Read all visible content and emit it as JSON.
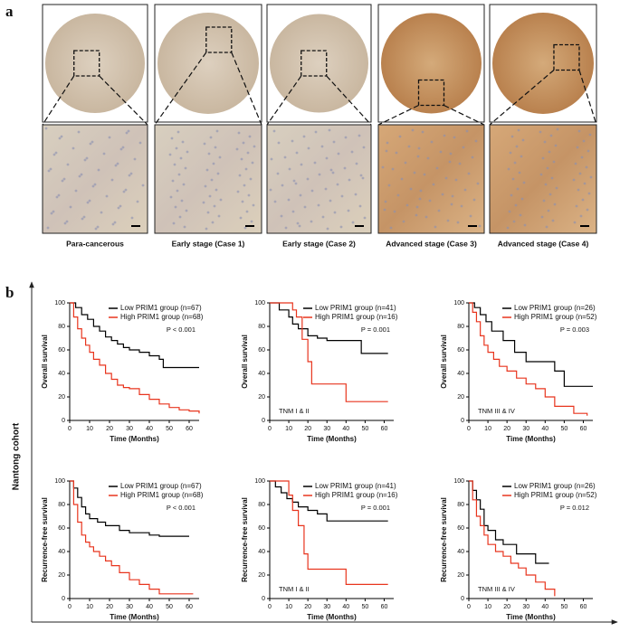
{
  "panel_a": {
    "label": "a",
    "captions": [
      "Para-cancerous",
      "Early stage (Case 1)",
      "Early stage (Case 2)",
      "Advanced stage (Case 3)",
      "Advanced stage (Case 4)"
    ]
  },
  "panel_b": {
    "label": "b",
    "cohort": "Nantong cohort"
  },
  "chart_data": [
    {
      "type": "line",
      "step": true,
      "ylabel": "Overall survival",
      "xlabel": "Time (Months)",
      "annotation": "P < 0.001",
      "legend": "upper right",
      "xlim": [
        0,
        65
      ],
      "ylim": [
        0,
        100
      ],
      "xticks": [
        0,
        10,
        20,
        30,
        40,
        50,
        60
      ],
      "yticks": [
        0,
        20,
        40,
        60,
        80,
        100
      ],
      "series": [
        {
          "name": "Low PRIM1 group (n=67)",
          "color": "#000000",
          "x": [
            0,
            3,
            6,
            9,
            12,
            15,
            18,
            21,
            24,
            27,
            30,
            35,
            40,
            45,
            47,
            65
          ],
          "values": [
            100,
            96,
            90,
            86,
            80,
            76,
            71,
            68,
            65,
            62,
            60,
            58,
            55,
            52,
            45,
            45
          ]
        },
        {
          "name": "High PRIM1 group (n=68)",
          "color": "#e8351e",
          "x": [
            0,
            2,
            4,
            6,
            8,
            10,
            12,
            15,
            18,
            21,
            24,
            27,
            30,
            35,
            40,
            45,
            50,
            55,
            60,
            65
          ],
          "values": [
            100,
            88,
            78,
            70,
            64,
            58,
            52,
            47,
            40,
            35,
            30,
            28,
            27,
            22,
            18,
            14,
            11,
            9,
            8,
            6
          ]
        }
      ]
    },
    {
      "type": "line",
      "step": true,
      "ylabel": "Overall survival",
      "xlabel": "Time (Months)",
      "annotation": "P = 0.001",
      "subgroup": "TNM I & II",
      "legend": "upper right",
      "xlim": [
        0,
        65
      ],
      "ylim": [
        0,
        100
      ],
      "xticks": [
        0,
        10,
        20,
        30,
        40,
        50,
        60
      ],
      "yticks": [
        0,
        20,
        40,
        60,
        80,
        100
      ],
      "series": [
        {
          "name": "Low PRIM1 group (n=41)",
          "color": "#000000",
          "x": [
            0,
            5,
            10,
            12,
            15,
            20,
            25,
            30,
            48,
            62
          ],
          "values": [
            100,
            94,
            88,
            82,
            78,
            72,
            70,
            68,
            57,
            57
          ]
        },
        {
          "name": "High PRIM1 group (n=16)",
          "color": "#e8351e",
          "x": [
            0,
            12,
            14,
            17,
            20,
            22,
            40,
            62
          ],
          "values": [
            100,
            94,
            88,
            69,
            50,
            31,
            16,
            16
          ]
        }
      ]
    },
    {
      "type": "line",
      "step": true,
      "ylabel": "Overall survival",
      "xlabel": "Time (Months)",
      "annotation": "P = 0.003",
      "subgroup": "TNM III & IV",
      "legend": "upper right",
      "xlim": [
        0,
        65
      ],
      "ylim": [
        0,
        100
      ],
      "xticks": [
        0,
        10,
        20,
        30,
        40,
        50,
        60
      ],
      "yticks": [
        0,
        20,
        40,
        60,
        80,
        100
      ],
      "series": [
        {
          "name": "Low PRIM1 group (n=26)",
          "color": "#000000",
          "x": [
            0,
            3,
            6,
            9,
            12,
            18,
            24,
            30,
            35,
            45,
            50,
            65
          ],
          "values": [
            100,
            96,
            90,
            84,
            76,
            68,
            58,
            50,
            50,
            42,
            29,
            29
          ]
        },
        {
          "name": "High PRIM1 group (n=52)",
          "color": "#e8351e",
          "x": [
            0,
            2,
            4,
            6,
            8,
            10,
            13,
            16,
            20,
            25,
            30,
            35,
            40,
            45,
            55,
            62
          ],
          "values": [
            100,
            92,
            84,
            72,
            64,
            58,
            52,
            46,
            42,
            36,
            31,
            27,
            20,
            12,
            6,
            4
          ]
        }
      ]
    },
    {
      "type": "line",
      "step": true,
      "ylabel": "Recurrence-free survival",
      "xlabel": "Time (Months)",
      "annotation": "P < 0.001",
      "legend": "upper right",
      "xlim": [
        0,
        65
      ],
      "ylim": [
        0,
        100
      ],
      "xticks": [
        0,
        10,
        20,
        30,
        40,
        50,
        60
      ],
      "yticks": [
        0,
        20,
        40,
        60,
        80,
        100
      ],
      "series": [
        {
          "name": "Low PRIM1 group (n=67)",
          "color": "#000000",
          "x": [
            0,
            2,
            4,
            6,
            8,
            10,
            14,
            18,
            25,
            30,
            40,
            45,
            60
          ],
          "values": [
            100,
            94,
            86,
            78,
            72,
            68,
            65,
            62,
            58,
            56,
            54,
            53,
            53
          ]
        },
        {
          "name": "High PRIM1 group (n=68)",
          "color": "#e8351e",
          "x": [
            0,
            2,
            4,
            6,
            8,
            10,
            12,
            15,
            18,
            21,
            25,
            30,
            35,
            40,
            45,
            62
          ],
          "values": [
            100,
            80,
            65,
            54,
            48,
            44,
            40,
            36,
            32,
            28,
            22,
            16,
            12,
            8,
            4,
            4
          ]
        }
      ]
    },
    {
      "type": "line",
      "step": true,
      "ylabel": "Recurrence-free survival",
      "xlabel": "Time (Months)",
      "annotation": "P = 0.001",
      "subgroup": "TNM I & II",
      "legend": "upper right",
      "xlim": [
        0,
        65
      ],
      "ylim": [
        0,
        100
      ],
      "xticks": [
        0,
        10,
        20,
        30,
        40,
        50,
        60
      ],
      "yticks": [
        0,
        20,
        40,
        60,
        80,
        100
      ],
      "series": [
        {
          "name": "Low PRIM1 group (n=41)",
          "color": "#000000",
          "x": [
            0,
            3,
            6,
            9,
            12,
            15,
            20,
            25,
            30,
            62
          ],
          "values": [
            100,
            95,
            90,
            85,
            82,
            78,
            75,
            72,
            66,
            66
          ]
        },
        {
          "name": "High PRIM1 group (n=16)",
          "color": "#e8351e",
          "x": [
            0,
            10,
            12,
            15,
            18,
            20,
            40,
            62
          ],
          "values": [
            100,
            88,
            75,
            62,
            38,
            25,
            12,
            12
          ]
        }
      ]
    },
    {
      "type": "line",
      "step": true,
      "ylabel": "Recurrence-free survival",
      "xlabel": "Time (Months)",
      "annotation": "P = 0.012",
      "subgroup": "TNM III & IV",
      "legend": "upper right",
      "xlim": [
        0,
        65
      ],
      "ylim": [
        0,
        100
      ],
      "xticks": [
        0,
        10,
        20,
        30,
        40,
        50,
        60
      ],
      "yticks": [
        0,
        20,
        40,
        60,
        80,
        100
      ],
      "series": [
        {
          "name": "Low PRIM1 group (n=26)",
          "color": "#000000",
          "x": [
            0,
            2,
            4,
            6,
            8,
            10,
            14,
            18,
            25,
            35,
            42
          ],
          "values": [
            100,
            92,
            84,
            76,
            62,
            58,
            50,
            46,
            38,
            30,
            30
          ]
        },
        {
          "name": "High PRIM1 group (n=52)",
          "color": "#e8351e",
          "x": [
            0,
            2,
            4,
            6,
            8,
            10,
            14,
            18,
            22,
            26,
            30,
            35,
            40,
            45
          ],
          "values": [
            100,
            84,
            70,
            62,
            54,
            46,
            40,
            36,
            30,
            26,
            20,
            14,
            8,
            2
          ]
        }
      ]
    }
  ]
}
